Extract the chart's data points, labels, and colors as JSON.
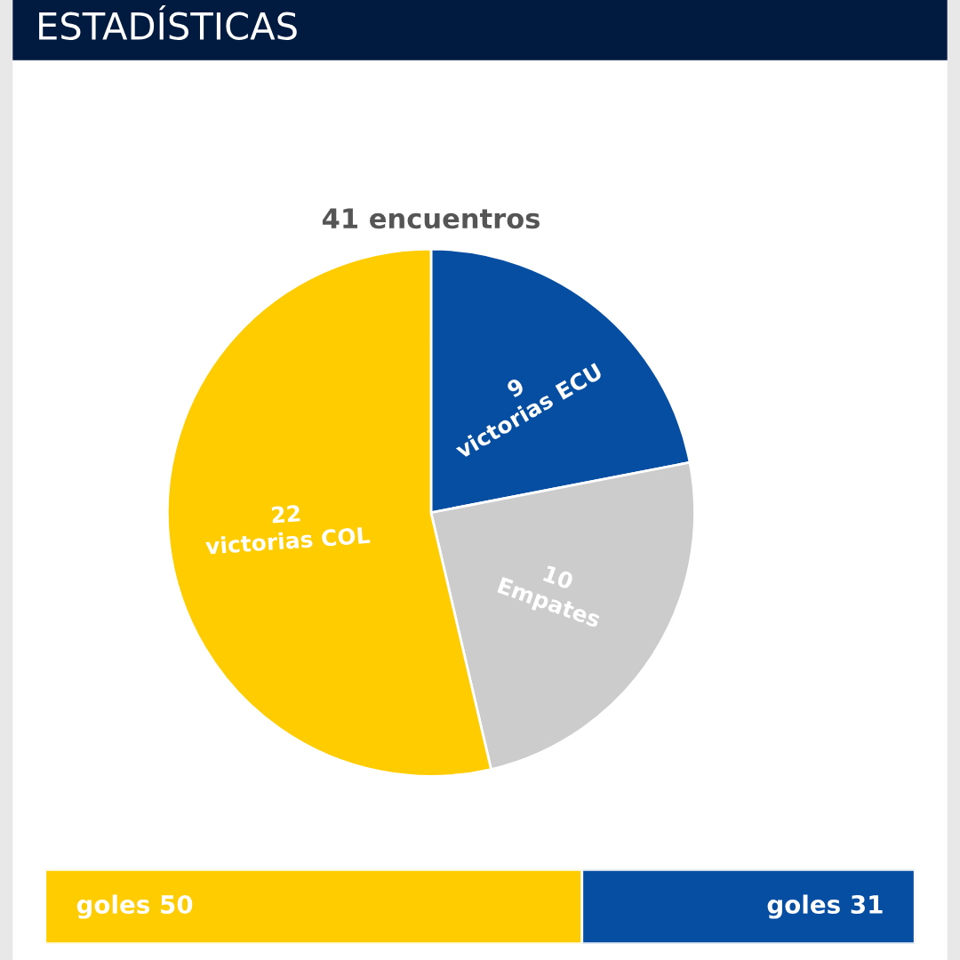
{
  "chart_data": [
    {
      "type": "pie",
      "title": "ESTADÍSTICAS",
      "subtitle": "41 encuentros",
      "categories": [
        "victorias ECU",
        "Empates",
        "victorias COL"
      ],
      "values": [
        9,
        10,
        22
      ],
      "colors": [
        "#054ea2",
        "#cccccc",
        "#ffcc00"
      ],
      "data_labels": true
    },
    {
      "type": "bar",
      "orientation": "horizontal",
      "stacked": true,
      "categories": [
        null
      ],
      "xlim": [
        0,
        81
      ],
      "series": [
        {
          "color": "#ffcc00",
          "values": [
            50
          ],
          "value_labels": [
            "goles 50"
          ]
        },
        {
          "color": "#054ea2",
          "values": [
            31
          ],
          "value_labels": [
            "goles 31"
          ]
        }
      ]
    }
  ]
}
